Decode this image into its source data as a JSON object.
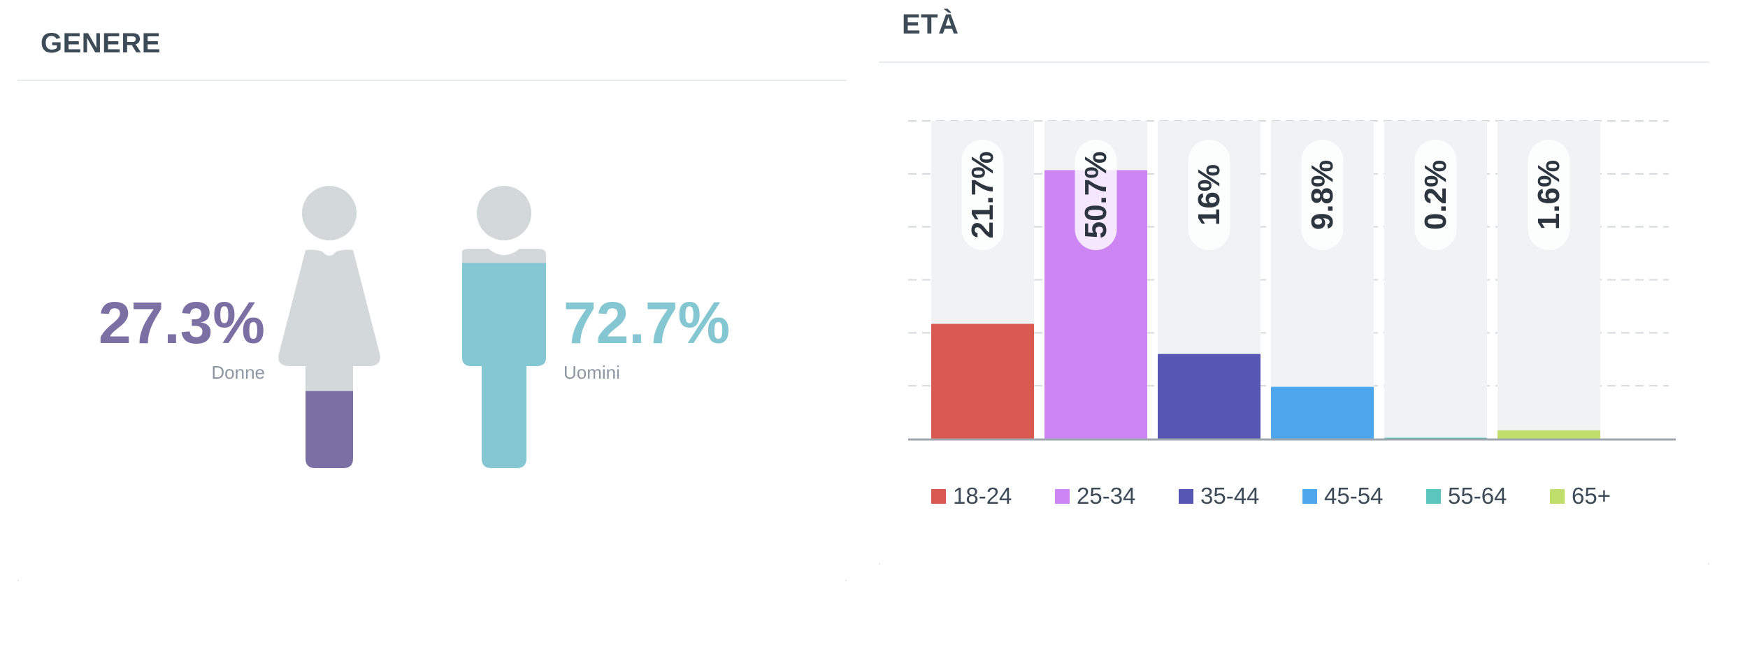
{
  "gender": {
    "title": "GENERE",
    "female": {
      "percent": 27.3,
      "percent_text": "27.3%",
      "label": "Donne",
      "color": "#7a70a4"
    },
    "male": {
      "percent": 72.7,
      "percent_text": "72.7%",
      "label": "Uomini",
      "color": "#84c6d2"
    },
    "figure_base_color": "#d3d8db"
  },
  "age": {
    "title": "ETÀ"
  },
  "chart_data": {
    "type": "bar",
    "categories": [
      "18-24",
      "25-34",
      "35-44",
      "45-54",
      "55-64",
      "65+"
    ],
    "values": [
      21.7,
      50.7,
      16,
      9.8,
      0.2,
      1.6
    ],
    "value_labels": [
      "21.7%",
      "50.7%",
      "16%",
      "9.8%",
      "0.2%",
      "1.6%"
    ],
    "colors": [
      "#d85a51",
      "#cd85f3",
      "#5756b4",
      "#4ea7ec",
      "#5ac6bd",
      "#bfde6b"
    ],
    "ylim": [
      0,
      60
    ],
    "grid": true,
    "legend_placement": "bottom"
  }
}
